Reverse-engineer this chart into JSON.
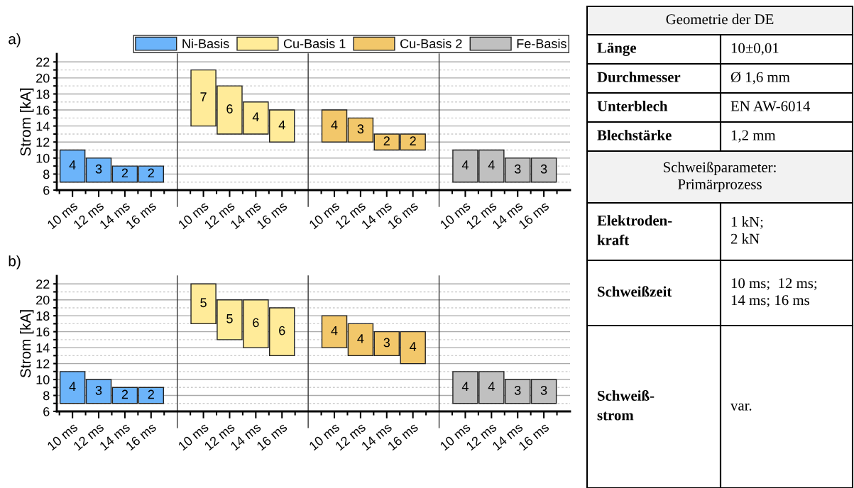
{
  "chart_data": [
    {
      "type": "bar",
      "title": "a)",
      "ylabel": "Strom [kA]",
      "categories": [
        "10 ms",
        "12 ms",
        "14 ms",
        "16 ms",
        null,
        "10 ms",
        "12 ms",
        "14 ms",
        "16 ms",
        null,
        "10 ms",
        "12 ms",
        "14 ms",
        "16 ms",
        null,
        "10 ms",
        "12 ms",
        "14 ms",
        "16 ms",
        null
      ],
      "ylim": [
        6,
        23
      ],
      "yticks": [
        6,
        {
          "value": 7,
          "label": null
        },
        8,
        {
          "value": 9,
          "label": null
        },
        10,
        {
          "value": 11,
          "label": null
        },
        12,
        {
          "value": 13,
          "label": null
        },
        14,
        {
          "value": 15,
          "label": null
        },
        16,
        {
          "value": 17,
          "label": null
        },
        18,
        {
          "value": 19,
          "label": null
        },
        20,
        {
          "value": 21,
          "label": null
        },
        22
      ],
      "grid": true,
      "legend": "top right",
      "data_labels": true,
      "series": [
        {
          "name": "Ni-Basis",
          "color": "#6cb4fa",
          "values": [
            4,
            3,
            2,
            2,
            null,
            null,
            null,
            null,
            null,
            null,
            null,
            null,
            null,
            null,
            null,
            null,
            null,
            null,
            null,
            null
          ],
          "base": [
            7,
            7,
            7,
            7,
            null,
            null,
            null,
            null,
            null,
            null,
            null,
            null,
            null,
            null,
            null,
            null,
            null,
            null,
            null,
            null
          ]
        },
        {
          "name": "Cu-Basis 1",
          "color": "#ffeb99",
          "values": [
            null,
            null,
            null,
            null,
            null,
            7,
            6,
            4,
            4,
            null,
            null,
            null,
            null,
            null,
            null,
            null,
            null,
            null,
            null,
            null
          ],
          "base": [
            null,
            null,
            null,
            null,
            null,
            14,
            13,
            13,
            12,
            null,
            null,
            null,
            null,
            null,
            null,
            null,
            null,
            null,
            null,
            null
          ]
        },
        {
          "name": "Cu-Basis 2",
          "color": "#f2c76a",
          "values": [
            null,
            null,
            null,
            null,
            null,
            null,
            null,
            null,
            null,
            null,
            4,
            3,
            2,
            2,
            null,
            null,
            null,
            null,
            null,
            null
          ],
          "base": [
            null,
            null,
            null,
            null,
            null,
            null,
            null,
            null,
            null,
            null,
            12,
            12,
            11,
            11,
            null,
            null,
            null,
            null,
            null,
            null
          ]
        },
        {
          "name": "Fe-Basis",
          "color": "#c0c0c0",
          "values": [
            null,
            null,
            null,
            null,
            null,
            null,
            null,
            null,
            null,
            null,
            null,
            null,
            null,
            null,
            null,
            4,
            4,
            3,
            3,
            null
          ],
          "base": [
            null,
            null,
            null,
            null,
            null,
            null,
            null,
            null,
            null,
            null,
            null,
            null,
            null,
            null,
            null,
            7,
            7,
            7,
            7,
            null
          ]
        }
      ]
    },
    {
      "type": "bar",
      "title": "b)",
      "ylabel": "Strom [kA]",
      "categories": [
        "10 ms",
        "12 ms",
        "14 ms",
        "16 ms",
        null,
        "10 ms",
        "12 ms",
        "14 ms",
        "16 ms",
        null,
        "10 ms",
        "12 ms",
        "14 ms",
        "16 ms",
        null,
        "10 ms",
        "12 ms",
        "14 ms",
        "16 ms",
        null
      ],
      "ylim": [
        6,
        23
      ],
      "yticks": [
        6,
        {
          "value": 7,
          "label": null
        },
        8,
        {
          "value": 9,
          "label": null
        },
        10,
        {
          "value": 11,
          "label": null
        },
        12,
        {
          "value": 13,
          "label": null
        },
        14,
        {
          "value": 15,
          "label": null
        },
        16,
        {
          "value": 17,
          "label": null
        },
        18,
        {
          "value": 19,
          "label": null
        },
        20,
        {
          "value": 21,
          "label": null
        },
        22
      ],
      "grid": true,
      "data_labels": true,
      "series": [
        {
          "color": "#6cb4fa",
          "values": [
            4,
            3,
            2,
            2,
            null,
            null,
            null,
            null,
            null,
            null,
            null,
            null,
            null,
            null,
            null,
            null,
            null,
            null,
            null,
            null
          ],
          "base": [
            7,
            7,
            7,
            7,
            null,
            null,
            null,
            null,
            null,
            null,
            null,
            null,
            null,
            null,
            null,
            null,
            null,
            null,
            null,
            null
          ]
        },
        {
          "color": "#ffeb99",
          "values": [
            null,
            null,
            null,
            null,
            null,
            5,
            5,
            6,
            6,
            null,
            null,
            null,
            null,
            null,
            null,
            null,
            null,
            null,
            null,
            null
          ],
          "base": [
            null,
            null,
            null,
            null,
            null,
            17,
            15,
            14,
            13,
            null,
            null,
            null,
            null,
            null,
            null,
            null,
            null,
            null,
            null,
            null
          ]
        },
        {
          "color": "#f2c76a",
          "values": [
            null,
            null,
            null,
            null,
            null,
            null,
            null,
            null,
            null,
            null,
            4,
            4,
            3,
            4,
            null,
            null,
            null,
            null,
            null,
            null
          ],
          "base": [
            null,
            null,
            null,
            null,
            null,
            null,
            null,
            null,
            null,
            null,
            14,
            13,
            13,
            12,
            null,
            null,
            null,
            null,
            null,
            null
          ]
        },
        {
          "color": "#c0c0c0",
          "values": [
            null,
            null,
            null,
            null,
            null,
            null,
            null,
            null,
            null,
            null,
            null,
            null,
            null,
            null,
            null,
            4,
            4,
            3,
            3,
            null
          ],
          "base": [
            null,
            null,
            null,
            null,
            null,
            null,
            null,
            null,
            null,
            null,
            null,
            null,
            null,
            null,
            null,
            7,
            7,
            7,
            7,
            null
          ]
        }
      ]
    },
    {
      "type": "other",
      "annotations": [
        "Geometrie der DE",
        "Länge",
        "10±0,01",
        "Durchmesser",
        "Ø 1,6 mm",
        "Unterblech",
        "EN AW-6014",
        "Blechstärke",
        "1,2 mm",
        "Schweißparameter:\nPrimärprozess",
        "Elektroden-\nkraft",
        "1 kN;\n2 kN",
        "Schweißzeit",
        "10 ms;  12 ms;\n14 ms; 16 ms",
        "Schweiß-\nstrom",
        "var."
      ]
    }
  ]
}
